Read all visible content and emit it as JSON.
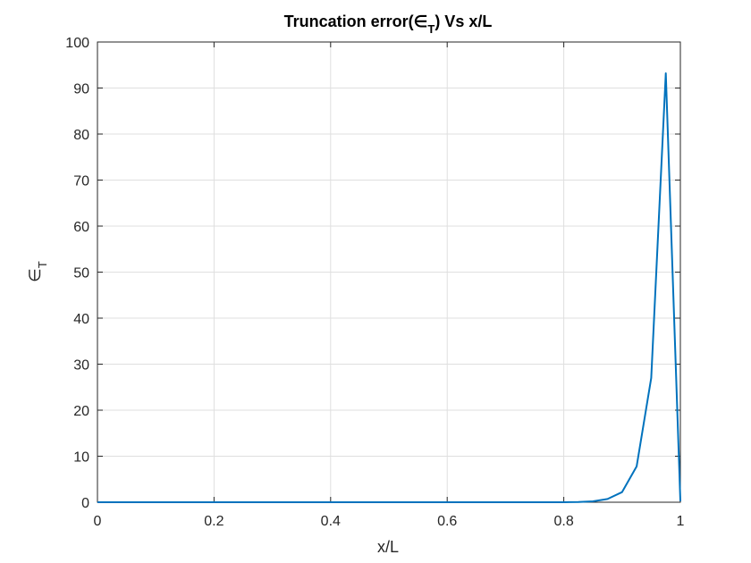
{
  "chart_data": {
    "type": "line",
    "title_main": "Truncation error(∈",
    "title_sub": "T",
    "title_end": ") Vs x/L",
    "xlabel": "x/L",
    "ylabel_main": "∈",
    "ylabel_sub": "T",
    "xlim": [
      0,
      1
    ],
    "ylim": [
      0,
      100
    ],
    "xticks": [
      0,
      0.2,
      0.4,
      0.6,
      0.8,
      1
    ],
    "xtick_labels": [
      "0",
      "0.2",
      "0.4",
      "0.6",
      "0.8",
      "1"
    ],
    "yticks": [
      0,
      10,
      20,
      30,
      40,
      50,
      60,
      70,
      80,
      90,
      100
    ],
    "ytick_labels": [
      "0",
      "10",
      "20",
      "30",
      "40",
      "50",
      "60",
      "70",
      "80",
      "90",
      "100"
    ],
    "grid": true,
    "series": [
      {
        "color": "#0072BD",
        "x": [
          0,
          0.1,
          0.2,
          0.3,
          0.4,
          0.5,
          0.6,
          0.7,
          0.8,
          0.825,
          0.85,
          0.875,
          0.9,
          0.925,
          0.95,
          0.975,
          1.0
        ],
        "y": [
          0,
          0,
          0,
          0,
          0,
          0,
          0,
          0,
          0,
          0.05,
          0.2,
          0.7,
          2.2,
          7.8,
          27,
          93.2,
          0.2
        ]
      }
    ]
  }
}
